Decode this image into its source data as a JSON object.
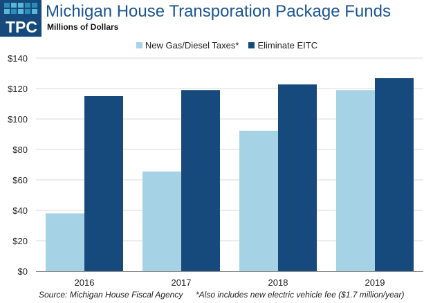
{
  "logo": {
    "text": "TPC",
    "grid_colors": [
      [
        "#2a8fb8",
        "#5cb6d6",
        "#5cb6d6",
        "#2a8fb8",
        "#2a8fb8"
      ],
      [
        "#5cb6d6",
        "#2a8fb8",
        "#5cb6d6",
        "#2a8fb8",
        "#5cb6d6"
      ]
    ]
  },
  "header": {
    "title": "Michigan House Transporation Package Funds",
    "subtitle": "Millions of Dollars"
  },
  "footer": {
    "source": "Source: Michigan House Fiscal Agency",
    "note": "*Also includes new electric vehicle fee ($1.7 million/year)"
  },
  "chart_data": {
    "type": "bar",
    "title": "Michigan House Transporation Package Funds",
    "subtitle": "Millions of Dollars",
    "xlabel": "",
    "ylabel": "",
    "categories": [
      "2016",
      "2017",
      "2018",
      "2019"
    ],
    "series": [
      {
        "name": "New Gas/Diesel Taxes*",
        "color": "#a6d2e5",
        "values": [
          38,
          65.5,
          92.3,
          119
        ]
      },
      {
        "name": "Eliminate EITC",
        "color": "#174a7c",
        "values": [
          115,
          119,
          122.7,
          126.8
        ]
      }
    ],
    "ylim": [
      0,
      140
    ],
    "yticks": [
      0,
      20,
      40,
      60,
      80,
      100,
      120,
      140
    ],
    "ytick_labels": [
      "$0",
      "$20",
      "$40",
      "$60",
      "$80",
      "$100",
      "$120",
      "$140"
    ],
    "grid": true,
    "legend_position": "top-center"
  }
}
